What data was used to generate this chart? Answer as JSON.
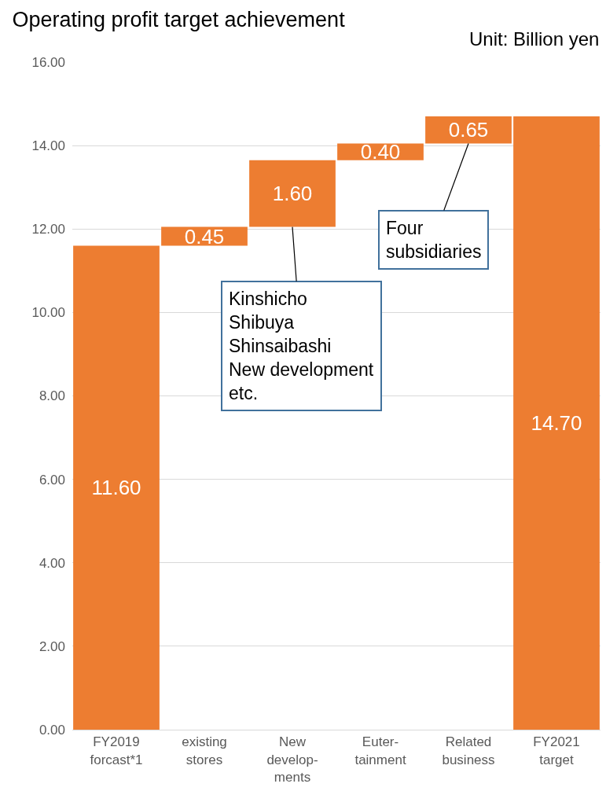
{
  "chart_data": {
    "type": "bar",
    "title": "Operating profit target achievement",
    "categories": [
      "FY2019\nforcast*1",
      "existing\nstores",
      "New\ndevelop-\nments",
      "Euter-\ntainment",
      "Related\nbusiness",
      "FY2021\ntarget"
    ],
    "values": [
      11.6,
      0.45,
      1.6,
      0.4,
      0.65,
      14.7
    ],
    "base": [
      0,
      11.6,
      12.05,
      13.65,
      14.05,
      0
    ],
    "color": "#ed7d31",
    "value_labels": [
      "11.60",
      "0.45",
      "1.60",
      "0.40",
      "0.65",
      "14.70"
    ],
    "ylim": [
      0,
      16
    ],
    "yticks": [
      {
        "value": 0,
        "label": "0.00"
      },
      {
        "value": 2,
        "label": "2.00"
      },
      {
        "value": 4,
        "label": "4.00"
      },
      {
        "value": 6,
        "label": "6.00"
      },
      {
        "value": 8,
        "label": "8.00"
      },
      {
        "value": 10,
        "label": "10.00"
      },
      {
        "value": 12,
        "label": "12.00"
      },
      {
        "value": 14,
        "label": "14.00"
      },
      {
        "value": 16,
        "label": "16.00"
      }
    ],
    "grid": "y",
    "annotations": [
      "Unit: Billion yen",
      {
        "text": "Kinshicho\nShibuya\nShinsaibashi\nNew development\netc.",
        "x": "New\ndevelop-\nments",
        "y": 12.05
      },
      {
        "text": "Four\nsubsidiaries",
        "x": "Related\nbusiness",
        "y": 14.05
      }
    ]
  }
}
